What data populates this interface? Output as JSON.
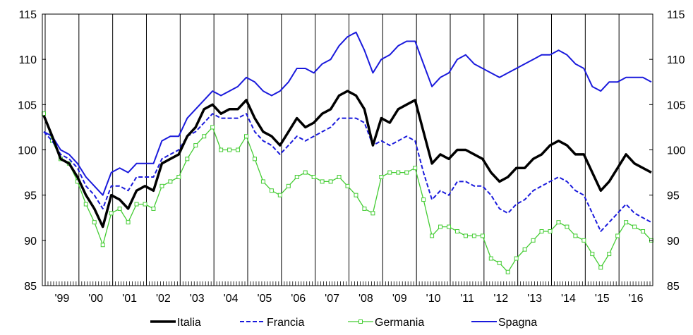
{
  "chart_data": {
    "type": "line",
    "title": "",
    "xlabel": "",
    "ylabel": "",
    "ylim": [
      85,
      115
    ],
    "y_ticks": [
      85,
      90,
      95,
      100,
      105,
      110,
      115
    ],
    "y_axis_sides": "left-and-right",
    "x_start": "1998-12",
    "x_end": "2016-12",
    "x_ticks": [
      "'99",
      "'00",
      "'01",
      "'02",
      "'03",
      "'04",
      "'05",
      "'06",
      "'07",
      "'08",
      "'09",
      "'10",
      "'11",
      "'12",
      "'13",
      "'14",
      "'15",
      "'16"
    ],
    "year_separators": true,
    "monthly_minor_ticks": true,
    "grid": false,
    "legend_position": "bottom",
    "series": [
      {
        "name": "Italia",
        "color": "#000000",
        "style": "solid-thick",
        "x": [
          "1998-12",
          "1999-03",
          "1999-06",
          "1999-09",
          "1999-12",
          "2000-03",
          "2000-06",
          "2000-09",
          "2000-12",
          "2001-03",
          "2001-06",
          "2001-09",
          "2001-12",
          "2002-03",
          "2002-06",
          "2002-09",
          "2002-12",
          "2003-03",
          "2003-06",
          "2003-09",
          "2003-12",
          "2004-03",
          "2004-06",
          "2004-09",
          "2004-12",
          "2005-03",
          "2005-06",
          "2005-09",
          "2005-12",
          "2006-03",
          "2006-06",
          "2006-09",
          "2006-12",
          "2007-03",
          "2007-06",
          "2007-09",
          "2007-12",
          "2008-03",
          "2008-06",
          "2008-09",
          "2008-12",
          "2009-03",
          "2009-06",
          "2009-09",
          "2009-12",
          "2010-03",
          "2010-06",
          "2010-09",
          "2010-12",
          "2011-03",
          "2011-06",
          "2011-09",
          "2011-12",
          "2012-03",
          "2012-06",
          "2012-09",
          "2012-12",
          "2013-03",
          "2013-06",
          "2013-09",
          "2013-12",
          "2014-03",
          "2014-06",
          "2014-09",
          "2014-12",
          "2015-03",
          "2015-06",
          "2015-09",
          "2015-12",
          "2016-03",
          "2016-06",
          "2016-09",
          "2016-12"
        ],
        "values": [
          103.8,
          101.5,
          99.0,
          98.5,
          97.0,
          95.0,
          93.5,
          91.5,
          95.0,
          94.5,
          93.5,
          95.5,
          96.0,
          95.5,
          98.5,
          99.0,
          99.5,
          101.5,
          102.5,
          104.5,
          105.0,
          104.0,
          104.5,
          104.5,
          105.5,
          103.5,
          102.0,
          101.5,
          100.5,
          102.0,
          103.5,
          102.5,
          103.0,
          104.0,
          104.5,
          106.0,
          106.5,
          106.0,
          104.5,
          100.5,
          103.5,
          103.0,
          104.5,
          105.0,
          105.5,
          102.0,
          98.5,
          99.5,
          99.0,
          100.0,
          100.0,
          99.5,
          99.0,
          97.5,
          96.5,
          97.0,
          98.0,
          98.0,
          99.0,
          99.5,
          100.5,
          101.0,
          100.5,
          99.5,
          99.5,
          97.5,
          95.5,
          96.5,
          98.0,
          99.5,
          98.5,
          98.0,
          97.5
        ]
      },
      {
        "name": "Francia",
        "color": "#1a1adc",
        "style": "dashed",
        "x": [
          "1998-12",
          "1999-03",
          "1999-06",
          "1999-09",
          "1999-12",
          "2000-03",
          "2000-06",
          "2000-09",
          "2000-12",
          "2001-03",
          "2001-06",
          "2001-09",
          "2001-12",
          "2002-03",
          "2002-06",
          "2002-09",
          "2002-12",
          "2003-03",
          "2003-06",
          "2003-09",
          "2003-12",
          "2004-03",
          "2004-06",
          "2004-09",
          "2004-12",
          "2005-03",
          "2005-06",
          "2005-09",
          "2005-12",
          "2006-03",
          "2006-06",
          "2006-09",
          "2006-12",
          "2007-03",
          "2007-06",
          "2007-09",
          "2007-12",
          "2008-03",
          "2008-06",
          "2008-09",
          "2008-12",
          "2009-03",
          "2009-06",
          "2009-09",
          "2009-12",
          "2010-03",
          "2010-06",
          "2010-09",
          "2010-12",
          "2011-03",
          "2011-06",
          "2011-09",
          "2011-12",
          "2012-03",
          "2012-06",
          "2012-09",
          "2012-12",
          "2013-03",
          "2013-06",
          "2013-09",
          "2013-12",
          "2014-03",
          "2014-06",
          "2014-09",
          "2014-12",
          "2015-03",
          "2015-06",
          "2015-09",
          "2015-12",
          "2016-03",
          "2016-06",
          "2016-09",
          "2016-12"
        ],
        "values": [
          102.0,
          101.0,
          99.5,
          99.0,
          98.0,
          96.0,
          95.0,
          93.5,
          96.0,
          96.0,
          95.5,
          97.0,
          97.0,
          97.0,
          99.0,
          99.5,
          100.0,
          101.5,
          102.0,
          103.0,
          104.0,
          103.5,
          103.5,
          103.5,
          104.0,
          102.0,
          101.0,
          100.5,
          99.5,
          100.5,
          101.5,
          101.0,
          101.5,
          102.0,
          102.5,
          103.5,
          103.5,
          103.5,
          103.0,
          100.5,
          101.0,
          100.5,
          101.0,
          101.5,
          101.0,
          97.5,
          94.5,
          95.5,
          95.0,
          96.5,
          96.5,
          96.0,
          96.0,
          95.0,
          93.5,
          93.0,
          94.0,
          94.5,
          95.5,
          96.0,
          96.5,
          97.0,
          96.5,
          95.5,
          95.0,
          93.0,
          91.0,
          92.0,
          93.0,
          94.0,
          93.0,
          92.5,
          92.0
        ]
      },
      {
        "name": "Germania",
        "color": "#44cc33",
        "style": "line-with-square-markers",
        "x": [
          "1998-12",
          "1999-03",
          "1999-06",
          "1999-09",
          "1999-12",
          "2000-03",
          "2000-06",
          "2000-09",
          "2000-12",
          "2001-03",
          "2001-06",
          "2001-09",
          "2001-12",
          "2002-03",
          "2002-06",
          "2002-09",
          "2002-12",
          "2003-03",
          "2003-06",
          "2003-09",
          "2003-12",
          "2004-03",
          "2004-06",
          "2004-09",
          "2004-12",
          "2005-03",
          "2005-06",
          "2005-09",
          "2005-12",
          "2006-03",
          "2006-06",
          "2006-09",
          "2006-12",
          "2007-03",
          "2007-06",
          "2007-09",
          "2007-12",
          "2008-03",
          "2008-06",
          "2008-09",
          "2008-12",
          "2009-03",
          "2009-06",
          "2009-09",
          "2009-12",
          "2010-03",
          "2010-06",
          "2010-09",
          "2010-12",
          "2011-03",
          "2011-06",
          "2011-09",
          "2011-12",
          "2012-03",
          "2012-06",
          "2012-09",
          "2012-12",
          "2013-03",
          "2013-06",
          "2013-09",
          "2013-12",
          "2014-03",
          "2014-06",
          "2014-09",
          "2014-12",
          "2015-03",
          "2015-06",
          "2015-09",
          "2015-12",
          "2016-03",
          "2016-06",
          "2016-09",
          "2016-12"
        ],
        "values": [
          104.0,
          101.0,
          99.0,
          98.5,
          96.5,
          94.0,
          92.0,
          89.5,
          93.0,
          93.5,
          92.0,
          94.0,
          94.0,
          93.5,
          96.0,
          96.5,
          97.0,
          99.0,
          100.5,
          101.5,
          102.5,
          100.0,
          100.0,
          100.0,
          101.5,
          99.0,
          96.5,
          95.5,
          95.0,
          96.0,
          97.0,
          97.5,
          97.0,
          96.5,
          96.5,
          97.0,
          96.0,
          95.0,
          93.5,
          93.0,
          97.0,
          97.5,
          97.5,
          97.5,
          98.0,
          94.5,
          90.5,
          91.5,
          91.5,
          91.0,
          90.5,
          90.5,
          90.5,
          88.0,
          87.5,
          86.5,
          88.0,
          89.0,
          90.0,
          91.0,
          91.0,
          92.0,
          91.5,
          90.5,
          90.0,
          88.5,
          87.0,
          88.5,
          90.5,
          92.0,
          91.5,
          91.0,
          90.0
        ]
      },
      {
        "name": "Spagna",
        "color": "#1a1adc",
        "style": "solid",
        "x": [
          "1998-12",
          "1999-03",
          "1999-06",
          "1999-09",
          "1999-12",
          "2000-03",
          "2000-06",
          "2000-09",
          "2000-12",
          "2001-03",
          "2001-06",
          "2001-09",
          "2001-12",
          "2002-03",
          "2002-06",
          "2002-09",
          "2002-12",
          "2003-03",
          "2003-06",
          "2003-09",
          "2003-12",
          "2004-03",
          "2004-06",
          "2004-09",
          "2004-12",
          "2005-03",
          "2005-06",
          "2005-09",
          "2005-12",
          "2006-03",
          "2006-06",
          "2006-09",
          "2006-12",
          "2007-03",
          "2007-06",
          "2007-09",
          "2007-12",
          "2008-03",
          "2008-06",
          "2008-09",
          "2008-12",
          "2009-03",
          "2009-06",
          "2009-09",
          "2009-12",
          "2010-03",
          "2010-06",
          "2010-09",
          "2010-12",
          "2011-03",
          "2011-06",
          "2011-09",
          "2011-12",
          "2012-03",
          "2012-06",
          "2012-09",
          "2012-12",
          "2013-03",
          "2013-06",
          "2013-09",
          "2013-12",
          "2014-03",
          "2014-06",
          "2014-09",
          "2014-12",
          "2015-03",
          "2015-06",
          "2015-09",
          "2015-12",
          "2016-03",
          "2016-06",
          "2016-09",
          "2016-12"
        ],
        "values": [
          102.0,
          101.5,
          100.0,
          99.5,
          98.5,
          97.0,
          96.0,
          95.0,
          97.5,
          98.0,
          97.5,
          98.5,
          98.5,
          98.5,
          101.0,
          101.5,
          101.5,
          103.5,
          104.5,
          105.5,
          106.5,
          106.0,
          106.5,
          107.0,
          108.0,
          107.5,
          106.5,
          106.0,
          106.5,
          107.5,
          109.0,
          109.0,
          108.5,
          109.5,
          110.0,
          111.5,
          112.5,
          113.0,
          111.0,
          108.5,
          110.0,
          110.5,
          111.5,
          112.0,
          112.0,
          109.5,
          107.0,
          108.0,
          108.5,
          110.0,
          110.5,
          109.5,
          109.0,
          108.5,
          108.0,
          108.5,
          109.0,
          109.5,
          110.0,
          110.5,
          110.5,
          111.0,
          110.5,
          109.5,
          109.0,
          107.0,
          106.5,
          107.5,
          107.5,
          108.0,
          108.0,
          108.0,
          107.5
        ]
      }
    ]
  }
}
